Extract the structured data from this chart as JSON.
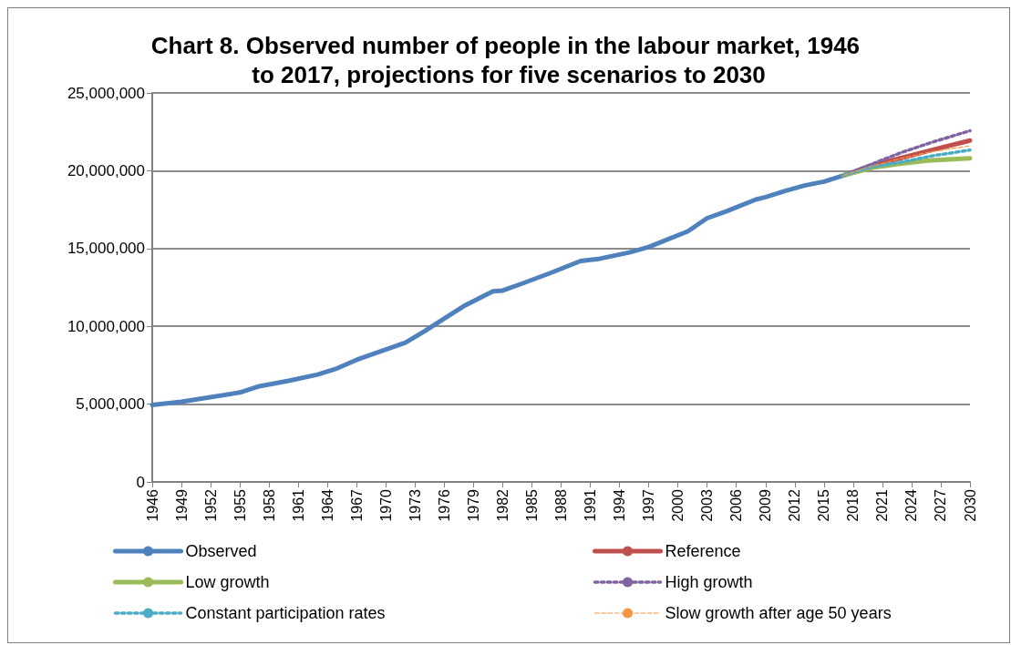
{
  "chart_data": {
    "type": "line",
    "title": "Chart 8. Observed number of people in the labour market, 1946 to 2017, projections for five scenarios to 2030",
    "xlim": [
      1946,
      2030
    ],
    "xticks": [
      1946,
      1949,
      1952,
      1955,
      1958,
      1961,
      1964,
      1967,
      1970,
      1973,
      1976,
      1979,
      1982,
      1985,
      1988,
      1991,
      1994,
      1997,
      2000,
      2003,
      2006,
      2009,
      2012,
      2015,
      2018,
      2021,
      2024,
      2027,
      2030
    ],
    "ylim": [
      0,
      25000000
    ],
    "yticks": [
      0,
      {
        "value": 5000000,
        "label": "5,000,000"
      },
      {
        "value": 10000000,
        "label": "10,000,000"
      },
      {
        "value": 15000000,
        "label": "15,000,000"
      },
      {
        "value": 20000000,
        "label": "20,000,000"
      },
      {
        "value": 25000000,
        "label": "25,000,000"
      }
    ],
    "grid": "y",
    "legend": "bottom",
    "marker": "none",
    "series": [
      {
        "name": "Observed",
        "color": "#4f81bd",
        "line_style": "solid",
        "x": [
          1946,
          1949,
          1955,
          1957,
          1960,
          1963,
          1965,
          1967,
          1972,
          1974,
          1976,
          1978,
          1981,
          1982,
          1984,
          1987,
          1990,
          1992,
          1995,
          1997,
          2001,
          2003,
          2005,
          2008,
          2009,
          2011,
          2013,
          2015,
          2017
        ],
        "values": [
          4950000,
          5150000,
          5750000,
          6150000,
          6500000,
          6900000,
          7300000,
          7850000,
          8950000,
          9700000,
          10500000,
          11300000,
          12250000,
          12300000,
          12750000,
          13450000,
          14200000,
          14350000,
          14750000,
          15100000,
          16100000,
          16950000,
          17400000,
          18150000,
          18300000,
          18700000,
          19050000,
          19300000,
          19700000
        ]
      },
      {
        "name": "Reference",
        "color": "#c0504d",
        "line_style": "solid",
        "x": [
          2017,
          2020,
          2023,
          2026,
          2030
        ],
        "values": [
          19700000,
          20350000,
          20830000,
          21320000,
          21940000
        ]
      },
      {
        "name": "Low growth",
        "color": "#9bbb59",
        "line_style": "solid",
        "x": [
          2017,
          2020,
          2023,
          2026,
          2030
        ],
        "values": [
          19700000,
          20200000,
          20460000,
          20670000,
          20800000
        ]
      },
      {
        "name": "High growth",
        "color": "#8064a2",
        "line_style": "dotted",
        "x": [
          2017,
          2020,
          2023,
          2026,
          2030
        ],
        "values": [
          19700000,
          20450000,
          21180000,
          21810000,
          22570000
        ]
      },
      {
        "name": "Constant participation rates",
        "color": "#4bacc6",
        "line_style": "dotted",
        "x": [
          2017,
          2020,
          2023,
          2026,
          2030
        ],
        "values": [
          19700000,
          20250000,
          20560000,
          20940000,
          21330000
        ]
      },
      {
        "name": "Slow growth after age 50 years",
        "color": "#f79646",
        "line_style": "dashed",
        "x": [
          2017,
          2020,
          2023,
          2026,
          2030
        ],
        "values": [
          19700000,
          20300000,
          20800000,
          21220000,
          21600000
        ]
      }
    ]
  }
}
